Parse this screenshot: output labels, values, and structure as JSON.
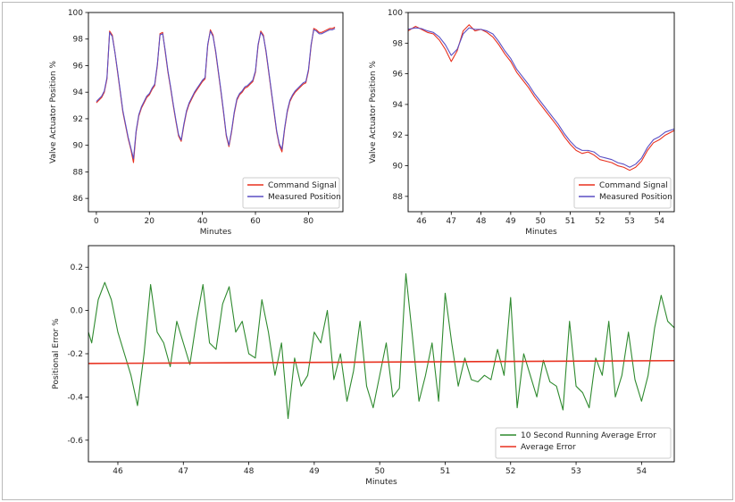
{
  "colors": {
    "command": "#e8311f",
    "measured": "#5a4fc4",
    "running": "#2f8a2f",
    "average": "#e8311f"
  },
  "chart_data": [
    {
      "type": "line",
      "xlabel": "Minutes",
      "ylabel": "Valve Actuator Position %",
      "xlim": [
        -3,
        93
      ],
      "ylim": [
        85,
        100
      ],
      "xticks": [
        0,
        20,
        40,
        60,
        80
      ],
      "yticks": [
        86,
        88,
        90,
        92,
        94,
        96,
        98,
        100
      ],
      "legend": "bottom-right",
      "series": [
        {
          "name": "Command Signal",
          "color": "#e8311f",
          "x": [
            0,
            1,
            2,
            3,
            4,
            5,
            6,
            7,
            8,
            9,
            10,
            11,
            12,
            13,
            14,
            15,
            16,
            17,
            18,
            19,
            20,
            21,
            22,
            23,
            24,
            25,
            26,
            27,
            28,
            29,
            30,
            31,
            32,
            33,
            34,
            35,
            36,
            37,
            38,
            39,
            40,
            41,
            42,
            43,
            44,
            45,
            46,
            47,
            48,
            49,
            50,
            51,
            52,
            53,
            54,
            55,
            56,
            57,
            58,
            59,
            60,
            61,
            62,
            63,
            64,
            65,
            66,
            67,
            68,
            69,
            70,
            71,
            72,
            73,
            74,
            75,
            76,
            77,
            78,
            79,
            80,
            81,
            82,
            83,
            84,
            85,
            86,
            87,
            88,
            89,
            90
          ],
          "y": [
            93.2,
            93.4,
            93.6,
            94.0,
            95.0,
            98.6,
            98.3,
            97.0,
            95.5,
            94.0,
            92.5,
            91.5,
            90.5,
            89.7,
            88.7,
            91.0,
            92.2,
            92.8,
            93.2,
            93.6,
            93.8,
            94.2,
            94.5,
            96.0,
            98.4,
            98.5,
            97.0,
            95.5,
            94.3,
            93.0,
            91.8,
            90.7,
            90.3,
            91.5,
            92.5,
            93.1,
            93.5,
            93.9,
            94.2,
            94.5,
            94.8,
            95.0,
            97.5,
            98.7,
            98.3,
            97.0,
            95.5,
            94.0,
            92.4,
            90.7,
            89.9,
            91.0,
            92.4,
            93.4,
            93.8,
            94.0,
            94.3,
            94.4,
            94.6,
            94.8,
            95.5,
            97.5,
            98.6,
            98.3,
            97.0,
            95.5,
            94.0,
            92.5,
            91.0,
            90.0,
            89.5,
            91.2,
            92.5,
            93.3,
            93.7,
            94.0,
            94.2,
            94.4,
            94.6,
            94.7,
            95.6,
            97.5,
            98.8,
            98.7,
            98.5,
            98.5,
            98.6,
            98.7,
            98.8,
            98.8,
            98.9
          ]
        },
        {
          "name": "Measured Position",
          "color": "#5a4fc4",
          "x": [
            0,
            1,
            2,
            3,
            4,
            5,
            6,
            7,
            8,
            9,
            10,
            11,
            12,
            13,
            14,
            15,
            16,
            17,
            18,
            19,
            20,
            21,
            22,
            23,
            24,
            25,
            26,
            27,
            28,
            29,
            30,
            31,
            32,
            33,
            34,
            35,
            36,
            37,
            38,
            39,
            40,
            41,
            42,
            43,
            44,
            45,
            46,
            47,
            48,
            49,
            50,
            51,
            52,
            53,
            54,
            55,
            56,
            57,
            58,
            59,
            60,
            61,
            62,
            63,
            64,
            65,
            66,
            67,
            68,
            69,
            70,
            71,
            72,
            73,
            74,
            75,
            76,
            77,
            78,
            79,
            80,
            81,
            82,
            83,
            84,
            85,
            86,
            87,
            88,
            89,
            90
          ],
          "y": [
            93.3,
            93.5,
            93.7,
            94.1,
            95.1,
            98.5,
            98.2,
            97.0,
            95.6,
            94.1,
            92.6,
            91.6,
            90.6,
            89.8,
            89.0,
            91.1,
            92.3,
            92.9,
            93.3,
            93.7,
            93.9,
            94.3,
            94.6,
            96.1,
            98.3,
            98.4,
            97.1,
            95.6,
            94.4,
            93.1,
            91.9,
            90.8,
            90.4,
            91.6,
            92.6,
            93.2,
            93.6,
            94.0,
            94.3,
            94.6,
            94.9,
            95.1,
            97.6,
            98.6,
            98.2,
            97.1,
            95.6,
            94.1,
            92.5,
            90.8,
            90.0,
            91.1,
            92.5,
            93.5,
            93.9,
            94.1,
            94.4,
            94.5,
            94.7,
            94.9,
            95.6,
            97.6,
            98.5,
            98.2,
            97.1,
            95.6,
            94.1,
            92.6,
            91.1,
            90.1,
            89.7,
            91.3,
            92.6,
            93.4,
            93.8,
            94.1,
            94.3,
            94.5,
            94.7,
            94.8,
            95.7,
            97.6,
            98.7,
            98.6,
            98.4,
            98.4,
            98.5,
            98.6,
            98.7,
            98.7,
            98.8
          ]
        }
      ]
    },
    {
      "type": "line",
      "xlabel": "Minutes",
      "ylabel": "Valve Actuator Position %",
      "xlim": [
        45.55,
        54.5
      ],
      "ylim": [
        87.0,
        100
      ],
      "xticks": [
        46,
        47,
        48,
        49,
        50,
        51,
        52,
        53,
        54
      ],
      "yticks": [
        88,
        90,
        92,
        94,
        96,
        98,
        100
      ],
      "legend": "bottom-right",
      "series": [
        {
          "name": "Command Signal",
          "color": "#e8311f",
          "x": [
            45.55,
            45.8,
            46.0,
            46.2,
            46.4,
            46.6,
            46.8,
            47.0,
            47.2,
            47.4,
            47.6,
            47.8,
            48.0,
            48.2,
            48.4,
            48.6,
            48.8,
            49.0,
            49.2,
            49.4,
            49.6,
            49.8,
            50.0,
            50.2,
            50.4,
            50.6,
            50.8,
            51.0,
            51.2,
            51.4,
            51.6,
            51.8,
            52.0,
            52.2,
            52.4,
            52.6,
            52.8,
            53.0,
            53.2,
            53.4,
            53.6,
            53.8,
            54.0,
            54.2,
            54.5
          ],
          "y": [
            98.8,
            99.1,
            98.9,
            98.7,
            98.6,
            98.2,
            97.6,
            96.8,
            97.5,
            98.8,
            99.2,
            98.8,
            98.9,
            98.7,
            98.4,
            97.9,
            97.3,
            96.8,
            96.1,
            95.6,
            95.1,
            94.5,
            94.0,
            93.5,
            93.0,
            92.5,
            91.9,
            91.4,
            91.0,
            90.8,
            90.9,
            90.7,
            90.4,
            90.3,
            90.2,
            90.0,
            89.9,
            89.7,
            89.9,
            90.3,
            91.0,
            91.5,
            91.7,
            92.0,
            92.3
          ]
        },
        {
          "name": "Measured Position",
          "color": "#5a4fc4",
          "x": [
            45.55,
            45.8,
            46.0,
            46.2,
            46.4,
            46.6,
            46.8,
            47.0,
            47.2,
            47.4,
            47.6,
            47.8,
            48.0,
            48.2,
            48.4,
            48.6,
            48.8,
            49.0,
            49.2,
            49.4,
            49.6,
            49.8,
            50.0,
            50.2,
            50.4,
            50.6,
            50.8,
            51.0,
            51.2,
            51.4,
            51.6,
            51.8,
            52.0,
            52.2,
            52.4,
            52.6,
            52.8,
            53.0,
            53.2,
            53.4,
            53.6,
            53.8,
            54.0,
            54.2,
            54.5
          ],
          "y": [
            98.9,
            99.0,
            98.95,
            98.8,
            98.7,
            98.4,
            97.9,
            97.2,
            97.6,
            98.6,
            99.0,
            98.9,
            98.9,
            98.8,
            98.6,
            98.1,
            97.5,
            97.0,
            96.3,
            95.8,
            95.3,
            94.7,
            94.2,
            93.7,
            93.2,
            92.7,
            92.1,
            91.6,
            91.2,
            91.0,
            91.0,
            90.9,
            90.6,
            90.5,
            90.4,
            90.2,
            90.1,
            89.9,
            90.1,
            90.5,
            91.2,
            91.7,
            91.9,
            92.2,
            92.4
          ]
        }
      ]
    },
    {
      "type": "line",
      "xlabel": "Minutes",
      "ylabel": "Positional Error %",
      "xlim": [
        45.55,
        54.5
      ],
      "ylim": [
        -0.7,
        0.3
      ],
      "xticks": [
        46,
        47,
        48,
        49,
        50,
        51,
        52,
        53,
        54
      ],
      "yticks": [
        -0.6,
        -0.4,
        -0.2,
        0.0,
        0.2
      ],
      "legend": "bottom-right",
      "series": [
        {
          "name": "10 Second Running Average Error",
          "color": "#2f8a2f",
          "x": [
            45.55,
            45.6,
            45.7,
            45.8,
            45.9,
            46.0,
            46.1,
            46.2,
            46.3,
            46.4,
            46.5,
            46.6,
            46.7,
            46.8,
            46.9,
            47.0,
            47.1,
            47.2,
            47.3,
            47.4,
            47.5,
            47.6,
            47.7,
            47.8,
            47.9,
            48.0,
            48.1,
            48.2,
            48.3,
            48.4,
            48.5,
            48.6,
            48.7,
            48.8,
            48.9,
            49.0,
            49.1,
            49.2,
            49.3,
            49.4,
            49.5,
            49.6,
            49.7,
            49.8,
            49.9,
            50.0,
            50.1,
            50.2,
            50.3,
            50.4,
            50.5,
            50.6,
            50.7,
            50.8,
            50.9,
            51.0,
            51.1,
            51.2,
            51.3,
            51.4,
            51.5,
            51.6,
            51.7,
            51.8,
            51.9,
            52.0,
            52.1,
            52.2,
            52.3,
            52.4,
            52.5,
            52.6,
            52.7,
            52.8,
            52.9,
            53.0,
            53.1,
            53.2,
            53.3,
            53.4,
            53.5,
            53.6,
            53.7,
            53.8,
            53.9,
            54.0,
            54.1,
            54.2,
            54.3,
            54.4,
            54.5
          ],
          "y": [
            -0.1,
            -0.15,
            0.05,
            0.13,
            0.05,
            -0.1,
            -0.2,
            -0.3,
            -0.44,
            -0.2,
            0.12,
            -0.1,
            -0.15,
            -0.26,
            -0.05,
            -0.15,
            -0.25,
            -0.05,
            0.12,
            -0.15,
            -0.18,
            0.03,
            0.11,
            -0.1,
            -0.05,
            -0.2,
            -0.22,
            0.05,
            -0.1,
            -0.3,
            -0.15,
            -0.5,
            -0.22,
            -0.35,
            -0.3,
            -0.1,
            -0.15,
            0.0,
            -0.32,
            -0.2,
            -0.42,
            -0.28,
            -0.05,
            -0.35,
            -0.45,
            -0.3,
            -0.15,
            -0.4,
            -0.36,
            0.17,
            -0.12,
            -0.42,
            -0.3,
            -0.15,
            -0.42,
            0.08,
            -0.15,
            -0.35,
            -0.22,
            -0.32,
            -0.33,
            -0.3,
            -0.32,
            -0.18,
            -0.3,
            0.06,
            -0.45,
            -0.2,
            -0.3,
            -0.4,
            -0.23,
            -0.33,
            -0.35,
            -0.46,
            -0.05,
            -0.35,
            -0.38,
            -0.45,
            -0.22,
            -0.3,
            -0.05,
            -0.4,
            -0.3,
            -0.1,
            -0.32,
            -0.42,
            -0.3,
            -0.08,
            0.07,
            -0.05,
            -0.08
          ]
        },
        {
          "name": "Average Error",
          "color": "#e8311f",
          "x": [
            45.55,
            54.5
          ],
          "y": [
            -0.245,
            -0.232
          ]
        }
      ]
    }
  ]
}
